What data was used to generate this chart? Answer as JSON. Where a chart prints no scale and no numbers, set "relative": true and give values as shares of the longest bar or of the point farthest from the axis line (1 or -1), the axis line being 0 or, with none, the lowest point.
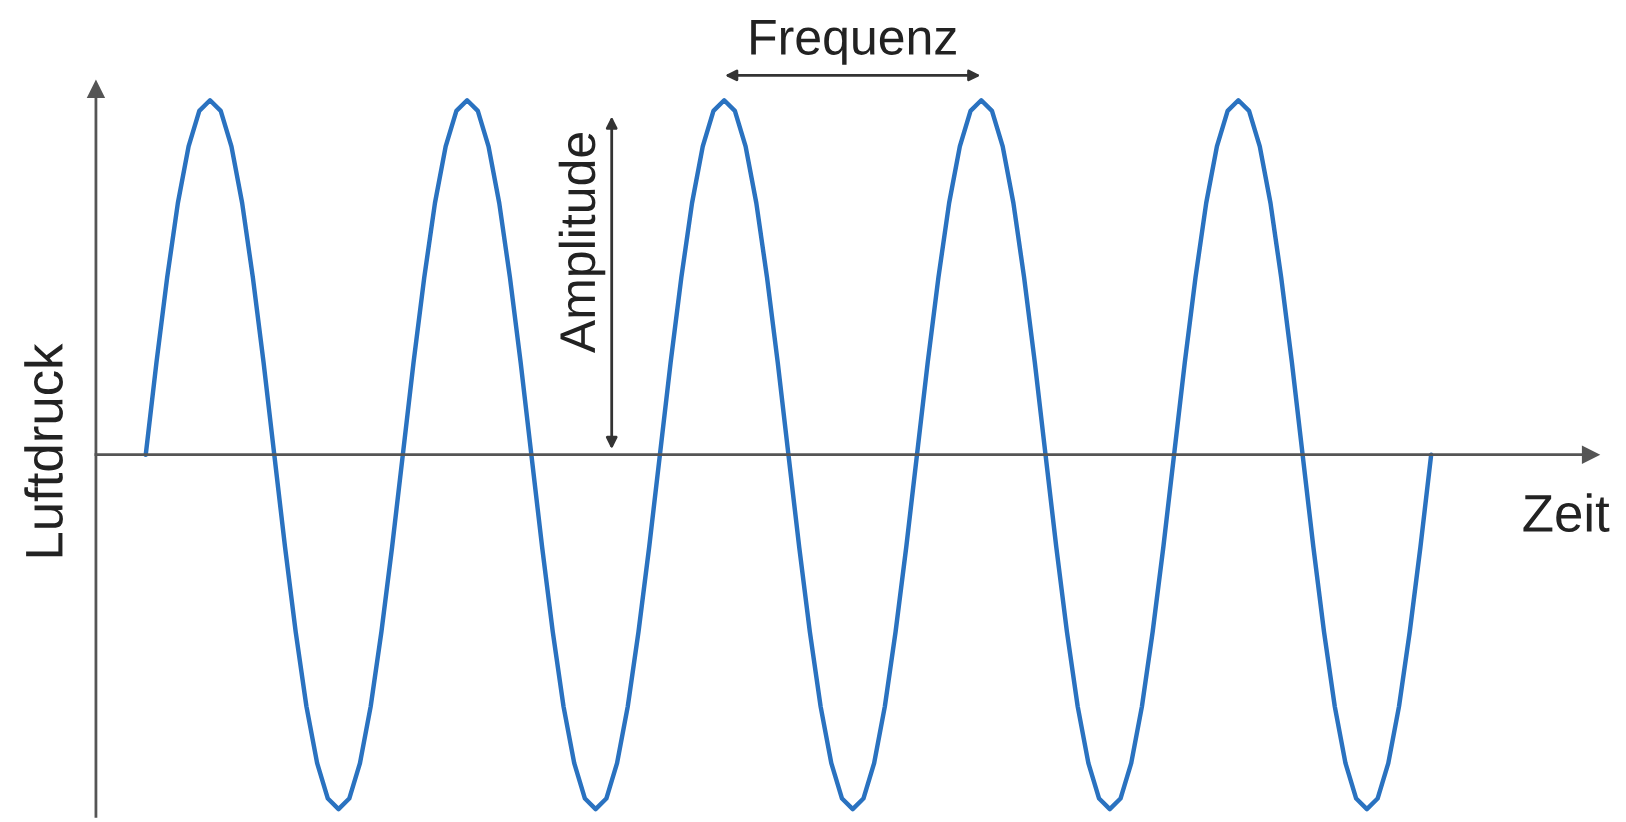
{
  "chart_data": {
    "type": "line",
    "relative": true,
    "xlabel": "Zeit",
    "ylabel": "Luftdruck",
    "annotations": [
      "Frequenz",
      "Amplitude"
    ],
    "categories": [
      null,
      null,
      null,
      null,
      null,
      null,
      null,
      null,
      null,
      null,
      null,
      null,
      null,
      null,
      null,
      null,
      null,
      null,
      null,
      null,
      null,
      null,
      null,
      null,
      null,
      null,
      null,
      null,
      null,
      null,
      null,
      null,
      null,
      null,
      null,
      null,
      null,
      null,
      null,
      null,
      null,
      null,
      null,
      null,
      null,
      null,
      null,
      null,
      null,
      null,
      null,
      null,
      null,
      null,
      null,
      null,
      null,
      null,
      null,
      null,
      null,
      null,
      null,
      null,
      null,
      null,
      null,
      null,
      null,
      null,
      null,
      null,
      null,
      null,
      null,
      null,
      null,
      null,
      null,
      null,
      null,
      null,
      null,
      null,
      null,
      null,
      null,
      null,
      null,
      null,
      null,
      null,
      null,
      null,
      null,
      null,
      null,
      null,
      null,
      null,
      null,
      null,
      null,
      null,
      null,
      null,
      null,
      null,
      null,
      null,
      null,
      null,
      null,
      null,
      null,
      null,
      null,
      null,
      null,
      null,
      null
    ],
    "series": [
      {
        "color": "#2a72c0",
        "values": [
          0,
          0.26,
          0.5,
          0.71,
          0.87,
          0.97,
          1,
          0.97,
          0.87,
          0.71,
          0.5,
          0.26,
          0,
          -0.26,
          -0.5,
          -0.71,
          -0.87,
          -0.97,
          -1,
          -0.97,
          -0.87,
          -0.71,
          -0.5,
          -0.26,
          0,
          0.26,
          0.5,
          0.71,
          0.87,
          0.97,
          1,
          0.97,
          0.87,
          0.71,
          0.5,
          0.26,
          0,
          -0.26,
          -0.5,
          -0.71,
          -0.87,
          -0.97,
          -1,
          -0.97,
          -0.87,
          -0.71,
          -0.5,
          -0.26,
          0,
          0.26,
          0.5,
          0.71,
          0.87,
          0.97,
          1,
          0.97,
          0.87,
          0.71,
          0.5,
          0.26,
          0,
          -0.26,
          -0.5,
          -0.71,
          -0.87,
          -0.97,
          -1,
          -0.97,
          -0.87,
          -0.71,
          -0.5,
          -0.26,
          0,
          0.26,
          0.5,
          0.71,
          0.87,
          0.97,
          1,
          0.97,
          0.87,
          0.71,
          0.5,
          0.26,
          0,
          -0.26,
          -0.5,
          -0.71,
          -0.87,
          -0.97,
          -1,
          -0.97,
          -0.87,
          -0.71,
          -0.5,
          -0.26,
          0,
          0.26,
          0.5,
          0.71,
          0.87,
          0.97,
          1,
          0.97,
          0.87,
          0.71,
          0.5,
          0.26,
          0,
          -0.26,
          -0.5,
          -0.71,
          -0.87,
          -0.97,
          -1,
          -0.97,
          -0.87,
          -0.71,
          -0.5,
          -0.26,
          0
        ]
      }
    ],
    "marker": "none",
    "line_style": "solid"
  }
}
